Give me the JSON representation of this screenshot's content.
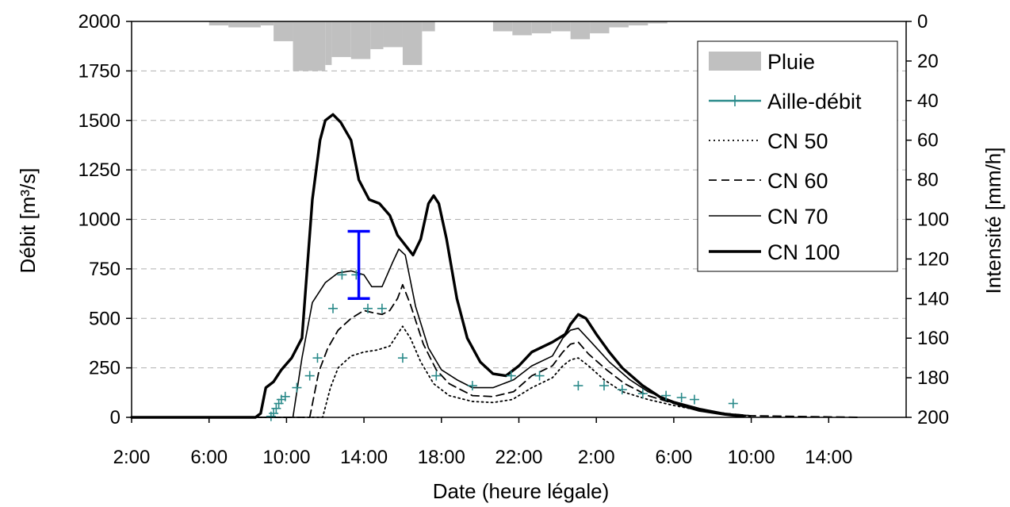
{
  "chart_data": {
    "type": "line",
    "title": "",
    "xlabel": "Date (heure légale)",
    "ylabel_left": "Débit [m³/s]",
    "ylabel_right": "Intensité [mm/h]",
    "x_unit": "hours",
    "x_start_label": "2:00",
    "xlim": [
      0,
      60
    ],
    "ylim_left": [
      0,
      2000
    ],
    "ylim_right": [
      0,
      200
    ],
    "right_axis_inverted": true,
    "x_ticks": [
      "2:00",
      "6:00",
      "10:00",
      "14:00",
      "18:00",
      "22:00",
      "2:00",
      "6:00",
      "10:00",
      "14:00"
    ],
    "y_ticks_left": [
      0,
      250,
      500,
      750,
      1000,
      1250,
      1500,
      1750,
      2000
    ],
    "y_ticks_right": [
      0,
      20,
      40,
      60,
      80,
      100,
      120,
      140,
      160,
      180,
      200
    ],
    "grid": "horizontal dashed",
    "legend_position": "top-right",
    "series": [
      {
        "name": "Pluie",
        "kind": "bar",
        "color": "#c0c0c0",
        "axis": "right",
        "bars": [
          {
            "x": 6.0,
            "x_end": 7.5,
            "value": 2
          },
          {
            "x": 7.5,
            "x_end": 10.0,
            "value": 3
          },
          {
            "x": 10.0,
            "x_end": 11.0,
            "value": 2
          },
          {
            "x": 11.0,
            "x_end": 12.5,
            "value": 10
          },
          {
            "x": 12.5,
            "x_end": 15.0,
            "value": 25
          },
          {
            "x": 15.0,
            "x_end": 15.5,
            "value": 22
          },
          {
            "x": 15.5,
            "x_end": 17.0,
            "value": 18
          },
          {
            "x": 17.0,
            "x_end": 18.5,
            "value": 19
          },
          {
            "x": 18.5,
            "x_end": 19.5,
            "value": 14
          },
          {
            "x": 19.5,
            "x_end": 21.0,
            "value": 13
          },
          {
            "x": 21.0,
            "x_end": 22.5,
            "value": 22
          },
          {
            "x": 22.5,
            "x_end": 23.5,
            "value": 5
          },
          {
            "x": 28.0,
            "x_end": 29.5,
            "value": 5
          },
          {
            "x": 29.5,
            "x_end": 31.0,
            "value": 7
          },
          {
            "x": 31.0,
            "x_end": 32.5,
            "value": 6
          },
          {
            "x": 32.5,
            "x_end": 34.0,
            "value": 5
          },
          {
            "x": 34.0,
            "x_end": 35.5,
            "value": 9
          },
          {
            "x": 35.5,
            "x_end": 37.0,
            "value": 6
          },
          {
            "x": 37.0,
            "x_end": 38.5,
            "value": 3
          },
          {
            "x": 38.5,
            "x_end": 40.0,
            "value": 2
          },
          {
            "x": 40.0,
            "x_end": 41.5,
            "value": 1
          }
        ]
      },
      {
        "name": "Aille-débit",
        "kind": "marker",
        "color": "#2a8a8a",
        "axis": "left",
        "points": [
          [
            10.8,
            5
          ],
          [
            11.0,
            20
          ],
          [
            11.2,
            45
          ],
          [
            11.4,
            70
          ],
          [
            11.6,
            90
          ],
          [
            11.9,
            105
          ],
          [
            12.8,
            150
          ],
          [
            13.8,
            210
          ],
          [
            14.4,
            300
          ],
          [
            15.6,
            550
          ],
          [
            16.3,
            720
          ],
          [
            17.4,
            720
          ],
          [
            18.3,
            550
          ],
          [
            19.4,
            550
          ],
          [
            21.0,
            300
          ],
          [
            23.6,
            210
          ],
          [
            26.4,
            160
          ],
          [
            29.4,
            210
          ],
          [
            31.6,
            210
          ],
          [
            34.6,
            160
          ],
          [
            36.6,
            160
          ],
          [
            38.0,
            140
          ],
          [
            39.6,
            120
          ],
          [
            41.4,
            110
          ],
          [
            42.6,
            100
          ],
          [
            43.6,
            90
          ],
          [
            46.6,
            70
          ]
        ]
      },
      {
        "name": "CN 50",
        "kind": "line",
        "style": "dotted",
        "color": "#000000",
        "axis": "left",
        "points": [
          [
            0,
            0
          ],
          [
            14.8,
            0
          ],
          [
            15.4,
            150
          ],
          [
            16.0,
            250
          ],
          [
            17.0,
            310
          ],
          [
            18.0,
            330
          ],
          [
            19.0,
            340
          ],
          [
            20.0,
            360
          ],
          [
            20.6,
            420
          ],
          [
            21.0,
            460
          ],
          [
            21.6,
            400
          ],
          [
            22.4,
            280
          ],
          [
            23.4,
            170
          ],
          [
            24.6,
            110
          ],
          [
            26.4,
            80
          ],
          [
            28.0,
            75
          ],
          [
            29.5,
            90
          ],
          [
            31.0,
            150
          ],
          [
            32.6,
            200
          ],
          [
            33.4,
            260
          ],
          [
            34.0,
            290
          ],
          [
            34.6,
            300
          ],
          [
            35.4,
            260
          ],
          [
            36.6,
            190
          ],
          [
            38.0,
            130
          ],
          [
            40.0,
            90
          ],
          [
            42.0,
            60
          ],
          [
            44.0,
            35
          ],
          [
            46.0,
            15
          ],
          [
            48.0,
            5
          ]
        ]
      },
      {
        "name": "CN 60",
        "kind": "line",
        "style": "dashed",
        "color": "#000000",
        "axis": "left",
        "points": [
          [
            0,
            0
          ],
          [
            13.8,
            0
          ],
          [
            14.5,
            230
          ],
          [
            15.2,
            350
          ],
          [
            16.0,
            440
          ],
          [
            17.0,
            500
          ],
          [
            18.0,
            540
          ],
          [
            18.6,
            530
          ],
          [
            19.4,
            520
          ],
          [
            20.0,
            540
          ],
          [
            20.6,
            600
          ],
          [
            21.0,
            670
          ],
          [
            21.6,
            570
          ],
          [
            22.6,
            370
          ],
          [
            23.6,
            240
          ],
          [
            24.6,
            170
          ],
          [
            26.4,
            110
          ],
          [
            28.0,
            105
          ],
          [
            29.6,
            130
          ],
          [
            31.0,
            210
          ],
          [
            32.6,
            260
          ],
          [
            33.4,
            330
          ],
          [
            34.0,
            370
          ],
          [
            34.6,
            380
          ],
          [
            35.4,
            320
          ],
          [
            36.8,
            240
          ],
          [
            38.2,
            170
          ],
          [
            40.0,
            110
          ],
          [
            42.0,
            70
          ],
          [
            44.0,
            40
          ],
          [
            46.0,
            20
          ],
          [
            48.0,
            8
          ],
          [
            56.5,
            0
          ]
        ]
      },
      {
        "name": "CN 70",
        "kind": "line",
        "style": "thin",
        "color": "#000000",
        "axis": "left",
        "points": [
          [
            0,
            0
          ],
          [
            12.5,
            0
          ],
          [
            13.2,
            300
          ],
          [
            14.0,
            580
          ],
          [
            15.0,
            680
          ],
          [
            16.0,
            730
          ],
          [
            17.0,
            740
          ],
          [
            18.0,
            720
          ],
          [
            18.6,
            660
          ],
          [
            19.4,
            660
          ],
          [
            20.2,
            780
          ],
          [
            20.7,
            850
          ],
          [
            21.2,
            820
          ],
          [
            22.0,
            560
          ],
          [
            23.0,
            350
          ],
          [
            24.0,
            240
          ],
          [
            25.2,
            190
          ],
          [
            26.4,
            150
          ],
          [
            28.0,
            150
          ],
          [
            29.6,
            190
          ],
          [
            31.0,
            260
          ],
          [
            32.6,
            310
          ],
          [
            33.4,
            400
          ],
          [
            34.0,
            440
          ],
          [
            34.6,
            450
          ],
          [
            35.6,
            380
          ],
          [
            37.0,
            280
          ],
          [
            38.6,
            190
          ],
          [
            40.0,
            130
          ],
          [
            42.0,
            80
          ],
          [
            44.0,
            45
          ],
          [
            46.0,
            20
          ],
          [
            48.0,
            8
          ]
        ]
      },
      {
        "name": "CN 100",
        "kind": "line",
        "style": "thick",
        "color": "#000000",
        "axis": "left",
        "points": [
          [
            0,
            0
          ],
          [
            9.6,
            0
          ],
          [
            10.0,
            20
          ],
          [
            10.4,
            150
          ],
          [
            11.0,
            180
          ],
          [
            11.6,
            240
          ],
          [
            12.4,
            300
          ],
          [
            13.2,
            400
          ],
          [
            14.0,
            1100
          ],
          [
            14.6,
            1400
          ],
          [
            15.0,
            1500
          ],
          [
            15.6,
            1530
          ],
          [
            16.2,
            1490
          ],
          [
            17.0,
            1400
          ],
          [
            17.6,
            1200
          ],
          [
            18.4,
            1100
          ],
          [
            19.2,
            1080
          ],
          [
            20.0,
            1020
          ],
          [
            20.6,
            920
          ],
          [
            21.2,
            870
          ],
          [
            21.8,
            820
          ],
          [
            22.4,
            900
          ],
          [
            23.0,
            1080
          ],
          [
            23.4,
            1120
          ],
          [
            23.8,
            1080
          ],
          [
            24.4,
            900
          ],
          [
            25.2,
            600
          ],
          [
            26.0,
            400
          ],
          [
            27.0,
            280
          ],
          [
            28.0,
            220
          ],
          [
            29.0,
            210
          ],
          [
            30.0,
            260
          ],
          [
            31.0,
            330
          ],
          [
            32.6,
            380
          ],
          [
            33.6,
            420
          ],
          [
            34.0,
            470
          ],
          [
            34.6,
            520
          ],
          [
            35.2,
            500
          ],
          [
            36.0,
            420
          ],
          [
            37.0,
            330
          ],
          [
            38.0,
            250
          ],
          [
            39.6,
            160
          ],
          [
            41.0,
            100
          ],
          [
            42.6,
            60
          ],
          [
            44.0,
            35
          ],
          [
            46.0,
            15
          ],
          [
            47.4,
            5
          ]
        ]
      },
      {
        "name": "",
        "kind": "errorbar",
        "color": "#0000ff",
        "axis": "left",
        "x": 17.6,
        "low": 600,
        "high": 940
      }
    ]
  }
}
